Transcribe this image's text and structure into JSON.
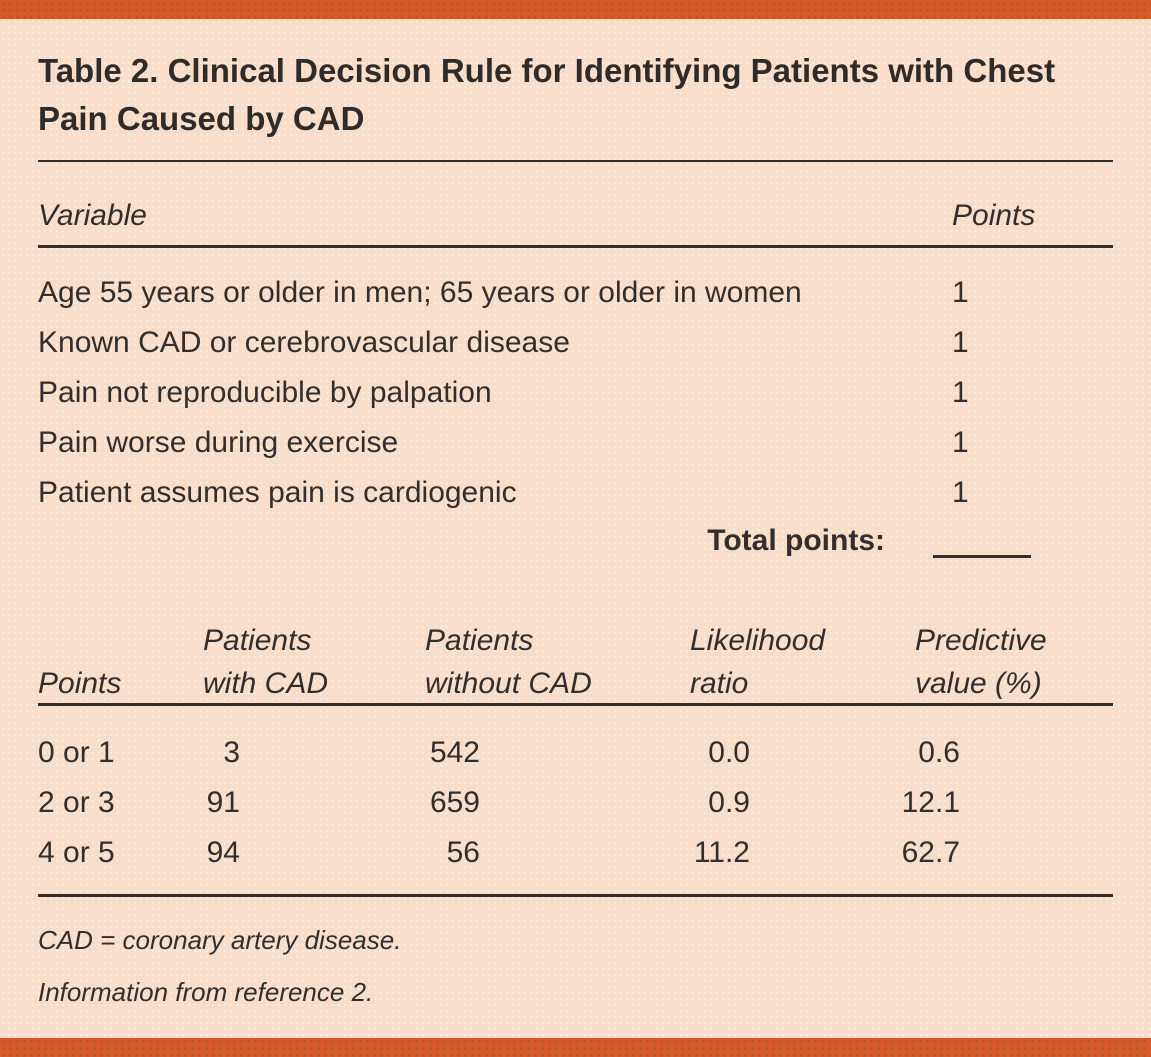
{
  "colors": {
    "accent_bar": "#d75a28",
    "background": "#f8ddc9",
    "text": "#332e2b"
  },
  "title": "Table 2. Clinical Decision Rule for Identifying Patients with Chest Pain Caused by CAD",
  "rule_table": {
    "header": {
      "variable": "Variable",
      "points": "Points"
    },
    "rows": [
      {
        "variable": "Age 55 years or older in men; 65 years or older in women",
        "points": "1"
      },
      {
        "variable": "Known CAD or cerebrovascular disease",
        "points": "1"
      },
      {
        "variable": "Pain not reproducible by palpation",
        "points": "1"
      },
      {
        "variable": "Pain worse during exercise",
        "points": "1"
      },
      {
        "variable": "Patient assumes pain is cardiogenic",
        "points": "1"
      }
    ],
    "total_label": "Total points:",
    "total_value": ""
  },
  "score_table": {
    "header": [
      {
        "line1": "",
        "line2": "Points"
      },
      {
        "line1": "Patients",
        "line2": "with CAD"
      },
      {
        "line1": "Patients",
        "line2": "without CAD"
      },
      {
        "line1": "Likelihood",
        "line2": "ratio"
      },
      {
        "line1": "Predictive",
        "line2": "value (%)"
      }
    ],
    "rows": [
      [
        "0 or 1",
        "3",
        "542",
        "0.0",
        "0.6"
      ],
      [
        "2 or 3",
        "91",
        "659",
        "0.9",
        "12.1"
      ],
      [
        "4 or 5",
        "94",
        "56",
        "11.2",
        "62.7"
      ]
    ]
  },
  "footnotes": [
    "CAD = coronary artery disease.",
    "Information from reference 2."
  ]
}
